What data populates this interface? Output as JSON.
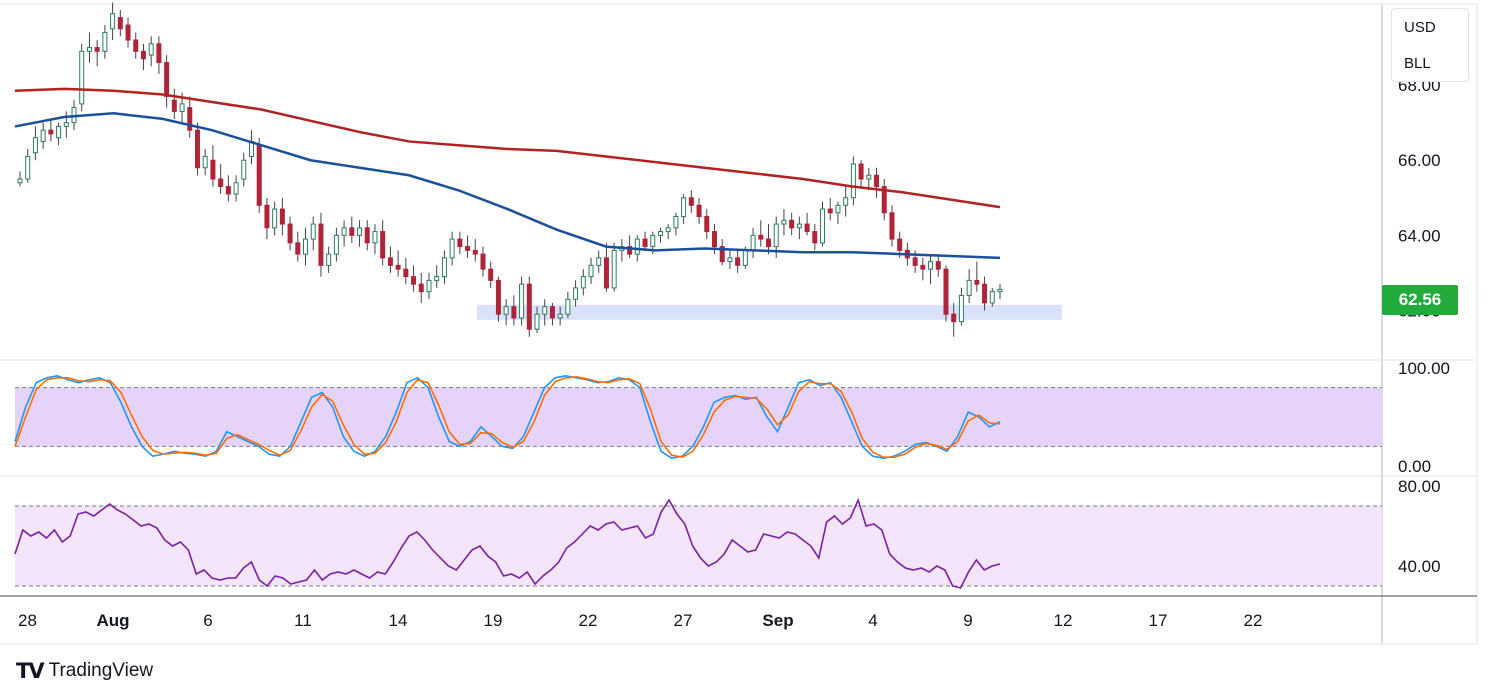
{
  "header": {
    "currency": "USD",
    "symbol": "BLL"
  },
  "last_price": "62.56",
  "brand": {
    "name": "TradingView",
    "mark": "TV"
  },
  "colors": {
    "bull": "#26a69a",
    "bear": "#ef5350",
    "candle_up": "#2b7d5f",
    "candle_down": "#b0243b",
    "ma_red": "#b22222",
    "ma_blue": "#1c4f9c",
    "support_zone": "#d6defa",
    "stoch_k": "#2196f3",
    "stoch_d": "#ff6d00",
    "stoch_band": "#e6d3fa",
    "rsi_line": "#7b1fa2",
    "rsi_band": "#f3e6fc",
    "price_tag": "#22ab3a"
  },
  "chart_data": [
    {
      "type": "candlestick",
      "name": "price",
      "y_ticks": [
        "68.00",
        "66.00",
        "64.00",
        "62.00"
      ],
      "ylim": [
        61.0,
        70.0
      ],
      "x_ticks": [
        "28",
        "Aug",
        "6",
        "11",
        "14",
        "19",
        "22",
        "27",
        "Sep",
        "4",
        "9",
        "12",
        "17",
        "22"
      ],
      "candles": [
        [
          65.4,
          65.7,
          65.3,
          65.5
        ],
        [
          65.5,
          66.3,
          65.4,
          66.1
        ],
        [
          66.2,
          66.9,
          66.0,
          66.6
        ],
        [
          66.5,
          67.0,
          66.3,
          66.8
        ],
        [
          66.8,
          67.1,
          66.5,
          66.7
        ],
        [
          66.6,
          67.0,
          66.4,
          66.9
        ],
        [
          66.9,
          67.3,
          66.6,
          67.0
        ],
        [
          67.0,
          67.6,
          66.8,
          67.4
        ],
        [
          67.5,
          69.1,
          67.3,
          68.9
        ],
        [
          68.9,
          69.4,
          68.6,
          69.0
        ],
        [
          69.0,
          69.2,
          68.5,
          68.9
        ],
        [
          68.9,
          69.6,
          68.7,
          69.4
        ],
        [
          69.5,
          70.2,
          69.2,
          69.9
        ],
        [
          69.8,
          70.0,
          69.3,
          69.5
        ],
        [
          69.6,
          69.8,
          69.0,
          69.2
        ],
        [
          69.2,
          69.4,
          68.7,
          68.9
        ],
        [
          68.9,
          69.1,
          68.4,
          68.7
        ],
        [
          68.8,
          69.3,
          68.5,
          69.1
        ],
        [
          69.1,
          69.3,
          68.3,
          68.6
        ],
        [
          68.6,
          68.8,
          67.4,
          67.7
        ],
        [
          67.6,
          67.9,
          67.1,
          67.3
        ],
        [
          67.3,
          67.8,
          67.0,
          67.5
        ],
        [
          67.4,
          67.7,
          66.6,
          66.8
        ],
        [
          66.8,
          67.0,
          65.6,
          65.8
        ],
        [
          65.8,
          66.3,
          65.6,
          66.1
        ],
        [
          66.0,
          66.4,
          65.3,
          65.5
        ],
        [
          65.5,
          65.9,
          65.1,
          65.3
        ],
        [
          65.3,
          65.6,
          64.9,
          65.1
        ],
        [
          65.1,
          65.6,
          64.9,
          65.4
        ],
        [
          65.5,
          66.2,
          65.3,
          66.0
        ],
        [
          66.1,
          66.8,
          65.9,
          66.5
        ],
        [
          66.4,
          66.6,
          64.6,
          64.8
        ],
        [
          64.8,
          65.0,
          63.9,
          64.2
        ],
        [
          64.2,
          64.9,
          64.0,
          64.7
        ],
        [
          64.7,
          65.0,
          64.0,
          64.3
        ],
        [
          64.3,
          64.5,
          63.6,
          63.8
        ],
        [
          63.8,
          64.1,
          63.3,
          63.5
        ],
        [
          63.5,
          64.2,
          63.2,
          63.9
        ],
        [
          63.9,
          64.5,
          63.6,
          64.3
        ],
        [
          64.3,
          64.6,
          62.9,
          63.2
        ],
        [
          63.2,
          63.7,
          63.0,
          63.5
        ],
        [
          63.5,
          64.2,
          63.3,
          64.0
        ],
        [
          64.0,
          64.4,
          63.7,
          64.2
        ],
        [
          64.2,
          64.5,
          63.8,
          64.0
        ],
        [
          64.0,
          64.4,
          63.7,
          64.2
        ],
        [
          64.2,
          64.4,
          63.6,
          63.8
        ],
        [
          63.8,
          64.3,
          63.5,
          64.1
        ],
        [
          64.1,
          64.4,
          63.2,
          63.4
        ],
        [
          63.4,
          63.7,
          63.0,
          63.2
        ],
        [
          63.2,
          63.6,
          62.9,
          63.1
        ],
        [
          63.1,
          63.4,
          62.7,
          62.9
        ],
        [
          62.9,
          63.2,
          62.5,
          62.7
        ],
        [
          62.7,
          63.0,
          62.2,
          62.5
        ],
        [
          62.5,
          63.0,
          62.3,
          62.8
        ],
        [
          62.8,
          63.2,
          62.6,
          62.9
        ],
        [
          62.9,
          63.6,
          62.7,
          63.4
        ],
        [
          63.4,
          64.1,
          63.2,
          63.9
        ],
        [
          63.9,
          64.1,
          63.5,
          63.7
        ],
        [
          63.7,
          64.0,
          63.4,
          63.6
        ],
        [
          63.6,
          63.9,
          63.3,
          63.5
        ],
        [
          63.5,
          63.7,
          62.9,
          63.1
        ],
        [
          63.1,
          63.3,
          62.6,
          62.8
        ],
        [
          62.8,
          62.9,
          61.7,
          61.9
        ],
        [
          61.9,
          62.3,
          61.6,
          62.1
        ],
        [
          62.1,
          62.4,
          61.6,
          61.8
        ],
        [
          61.8,
          62.9,
          61.6,
          62.7
        ],
        [
          62.7,
          62.9,
          61.3,
          61.5
        ],
        [
          61.5,
          62.1,
          61.4,
          61.9
        ],
        [
          61.9,
          62.3,
          61.6,
          62.1
        ],
        [
          62.1,
          62.2,
          61.6,
          61.8
        ],
        [
          61.8,
          62.1,
          61.6,
          61.9
        ],
        [
          61.9,
          62.5,
          61.8,
          62.3
        ],
        [
          62.3,
          62.8,
          62.1,
          62.6
        ],
        [
          62.6,
          63.1,
          62.4,
          62.9
        ],
        [
          62.9,
          63.4,
          62.7,
          63.2
        ],
        [
          63.2,
          63.6,
          63.0,
          63.4
        ],
        [
          63.4,
          63.8,
          62.5,
          62.6
        ],
        [
          62.6,
          63.8,
          62.5,
          63.6
        ],
        [
          63.6,
          63.9,
          63.3,
          63.7
        ],
        [
          63.7,
          64.0,
          63.4,
          63.5
        ],
        [
          63.5,
          64.0,
          63.3,
          63.9
        ],
        [
          63.9,
          64.1,
          63.6,
          63.7
        ],
        [
          63.7,
          64.1,
          63.5,
          64.0
        ],
        [
          64.0,
          64.2,
          63.8,
          64.1
        ],
        [
          64.1,
          64.3,
          63.9,
          64.2
        ],
        [
          64.2,
          64.6,
          64.0,
          64.5
        ],
        [
          64.5,
          65.1,
          64.3,
          65.0
        ],
        [
          65.0,
          65.2,
          64.6,
          64.8
        ],
        [
          64.8,
          65.0,
          64.3,
          64.5
        ],
        [
          64.5,
          64.7,
          63.9,
          64.1
        ],
        [
          64.1,
          64.3,
          63.5,
          63.7
        ],
        [
          63.7,
          63.9,
          63.2,
          63.3
        ],
        [
          63.3,
          63.6,
          63.1,
          63.4
        ],
        [
          63.4,
          63.6,
          63.0,
          63.2
        ],
        [
          63.2,
          63.7,
          63.1,
          63.6
        ],
        [
          63.6,
          64.2,
          63.4,
          64.0
        ],
        [
          64.0,
          64.4,
          63.7,
          63.9
        ],
        [
          63.9,
          64.3,
          63.5,
          63.7
        ],
        [
          63.7,
          64.5,
          63.4,
          64.3
        ],
        [
          64.3,
          64.7,
          64.0,
          64.4
        ],
        [
          64.4,
          64.6,
          64.0,
          64.2
        ],
        [
          64.2,
          64.5,
          63.9,
          64.3
        ],
        [
          64.3,
          64.6,
          64.0,
          64.1
        ],
        [
          64.1,
          64.3,
          63.6,
          63.8
        ],
        [
          63.8,
          64.9,
          63.7,
          64.7
        ],
        [
          64.7,
          65.0,
          64.4,
          64.6
        ],
        [
          64.6,
          64.9,
          64.3,
          64.8
        ],
        [
          64.8,
          65.3,
          64.5,
          65.0
        ],
        [
          65.0,
          66.1,
          64.8,
          65.9
        ],
        [
          65.9,
          66.0,
          65.3,
          65.5
        ],
        [
          65.5,
          65.8,
          65.2,
          65.6
        ],
        [
          65.6,
          65.8,
          65.0,
          65.3
        ],
        [
          65.3,
          65.5,
          64.4,
          64.6
        ],
        [
          64.6,
          64.8,
          63.7,
          63.9
        ],
        [
          63.9,
          64.1,
          63.4,
          63.6
        ],
        [
          63.6,
          63.8,
          63.2,
          63.4
        ],
        [
          63.4,
          63.6,
          63.0,
          63.2
        ],
        [
          63.2,
          63.4,
          62.8,
          63.1
        ],
        [
          63.1,
          63.5,
          62.7,
          63.3
        ],
        [
          63.3,
          63.5,
          62.9,
          63.1
        ],
        [
          63.1,
          63.2,
          61.7,
          61.9
        ],
        [
          61.9,
          62.2,
          61.3,
          61.7
        ],
        [
          61.7,
          62.6,
          61.6,
          62.4
        ],
        [
          62.4,
          63.1,
          62.2,
          62.8
        ],
        [
          62.8,
          63.3,
          62.5,
          62.7
        ],
        [
          62.7,
          62.9,
          62.0,
          62.2
        ],
        [
          62.2,
          62.6,
          62.1,
          62.5
        ],
        [
          62.5,
          62.7,
          62.3,
          62.56
        ]
      ],
      "series": [
        {
          "name": "",
          "color": "#b22222",
          "values": [
            67.85,
            67.9,
            67.85,
            67.75,
            67.55,
            67.35,
            67.05,
            66.75,
            66.5,
            66.4,
            66.3,
            66.25,
            66.1,
            65.95,
            65.8,
            65.65,
            65.5,
            65.3,
            65.15,
            64.95,
            64.75
          ]
        },
        {
          "name": "",
          "color": "#1c4f9c",
          "values": [
            66.9,
            67.15,
            67.25,
            67.1,
            66.8,
            66.4,
            66.0,
            65.8,
            65.6,
            65.2,
            64.7,
            64.15,
            63.7,
            63.6,
            63.65,
            63.6,
            63.55,
            63.55,
            63.5,
            63.45,
            63.4
          ]
        }
      ],
      "support_zone": [
        61.75,
        62.15
      ]
    },
    {
      "type": "line",
      "name": "stochastic",
      "y_ticks": [
        "100.00",
        "0.00"
      ],
      "ylim": [
        0,
        100
      ],
      "band": [
        20,
        80
      ],
      "series": [
        {
          "name": "",
          "color": "#2196f3",
          "values": [
            25,
            60,
            85,
            90,
            92,
            88,
            85,
            88,
            90,
            85,
            65,
            40,
            20,
            10,
            12,
            15,
            13,
            12,
            10,
            15,
            35,
            30,
            25,
            20,
            12,
            10,
            20,
            45,
            70,
            75,
            60,
            30,
            15,
            10,
            15,
            30,
            55,
            85,
            90,
            80,
            50,
            25,
            20,
            25,
            40,
            30,
            20,
            18,
            30,
            55,
            80,
            90,
            92,
            90,
            88,
            85,
            86,
            90,
            88,
            80,
            45,
            15,
            8,
            10,
            20,
            40,
            65,
            70,
            72,
            68,
            70,
            50,
            35,
            60,
            85,
            88,
            82,
            85,
            70,
            45,
            20,
            10,
            8,
            10,
            15,
            22,
            24,
            20,
            15,
            30,
            55,
            50,
            40,
            45
          ]
        },
        {
          "name": "",
          "color": "#ff6d00",
          "values": [
            20,
            50,
            78,
            88,
            90,
            90,
            87,
            86,
            88,
            87,
            75,
            52,
            30,
            16,
            12,
            13,
            14,
            13,
            11,
            13,
            28,
            32,
            27,
            22,
            16,
            11,
            16,
            36,
            60,
            73,
            66,
            42,
            22,
            12,
            13,
            24,
            45,
            75,
            88,
            85,
            62,
            35,
            22,
            23,
            34,
            33,
            24,
            19,
            25,
            45,
            72,
            86,
            90,
            91,
            89,
            86,
            85,
            88,
            89,
            84,
            58,
            25,
            11,
            9,
            15,
            32,
            55,
            67,
            71,
            70,
            69,
            58,
            42,
            52,
            76,
            86,
            84,
            84,
            76,
            55,
            28,
            14,
            9,
            9,
            12,
            19,
            23,
            21,
            17,
            25,
            46,
            52,
            44,
            43
          ]
        }
      ]
    },
    {
      "type": "line",
      "name": "rsi",
      "y_ticks": [
        "80.00",
        "40.00"
      ],
      "ylim": [
        25,
        85
      ],
      "band": [
        30,
        70
      ],
      "series": [
        {
          "name": "",
          "color": "#7b1fa2",
          "values": [
            46,
            58,
            55,
            57,
            54,
            58,
            52,
            55,
            66,
            67,
            65,
            68,
            71,
            68,
            66,
            63,
            60,
            61,
            59,
            53,
            50,
            52,
            48,
            36,
            38,
            34,
            33,
            34,
            34,
            39,
            42,
            33,
            30,
            35,
            34,
            31,
            32,
            33,
            38,
            33,
            36,
            37,
            36,
            38,
            36,
            34,
            37,
            36,
            42,
            49,
            55,
            57,
            53,
            48,
            44,
            40,
            38,
            43,
            48,
            50,
            45,
            42,
            35,
            36,
            34,
            37,
            31,
            35,
            38,
            42,
            49,
            52,
            56,
            60,
            58,
            61,
            62,
            58,
            59,
            60,
            54,
            56,
            67,
            73,
            66,
            61,
            50,
            44,
            40,
            42,
            46,
            53,
            50,
            47,
            48,
            56,
            55,
            54,
            57,
            56,
            53,
            50,
            44,
            62,
            65,
            61,
            64,
            73,
            60,
            61,
            58,
            46,
            42,
            39,
            38,
            39,
            37,
            40,
            38,
            30,
            29,
            37,
            43,
            38,
            40,
            41
          ]
        }
      ]
    }
  ]
}
